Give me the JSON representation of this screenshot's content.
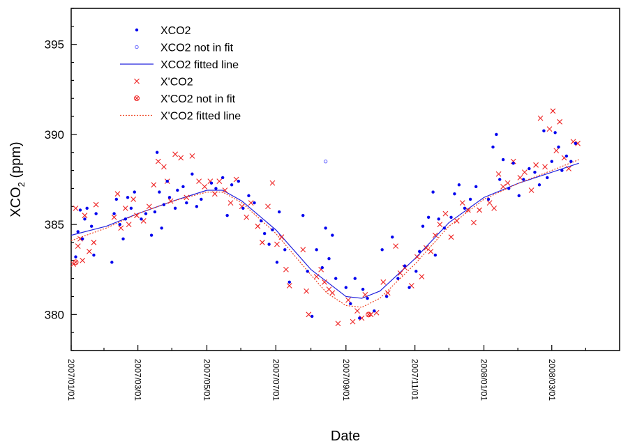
{
  "chart_data": {
    "type": "scatter",
    "title": "",
    "xlabel": "Date",
    "ylabel_main": "XCO",
    "ylabel_sub": "2",
    "ylabel_unit": " (ppm)",
    "xlim": [
      "2007-01-01",
      "2008-04-30"
    ],
    "ylim": [
      378,
      397
    ],
    "x_ticks": [
      "2007/01/01",
      "2007/03/01",
      "2007/05/01",
      "2007/07/01",
      "2007/09/01",
      "2007/11/01",
      "2008/01/01",
      "2008/03/01"
    ],
    "y_ticks": [
      "380",
      "385",
      "390",
      "395"
    ],
    "legend": {
      "position": "top-left",
      "entries": [
        {
          "label": "XCO2",
          "marker": "filled-dot",
          "color": "#0000ee"
        },
        {
          "label": "XCO2 not in fit",
          "marker": "open-circle",
          "color": "#6666ff"
        },
        {
          "label": "XCO2 fitted line",
          "marker": "solid-line",
          "color": "#2222dd"
        },
        {
          "label": "X'CO2",
          "marker": "cross",
          "color": "#ee2222"
        },
        {
          "label": "X'CO2 not in fit",
          "marker": "circled-cross",
          "color": "#ee2222"
        },
        {
          "label": "X'CO2 fitted line",
          "marker": "dotted-line",
          "color": "#ee4422"
        }
      ]
    },
    "series": [
      {
        "name": "XCO2",
        "points": [
          [
            "2007-01-05",
            383.2
          ],
          [
            "2007-01-07",
            384.6
          ],
          [
            "2007-01-09",
            385.8
          ],
          [
            "2007-01-11",
            384.2
          ],
          [
            "2007-01-13",
            385.3
          ],
          [
            "2007-01-15",
            385.9
          ],
          [
            "2007-01-19",
            384.9
          ],
          [
            "2007-01-21",
            383.3
          ],
          [
            "2007-01-23",
            385.6
          ],
          [
            "2007-02-06",
            382.9
          ],
          [
            "2007-02-08",
            385.6
          ],
          [
            "2007-02-10",
            386.4
          ],
          [
            "2007-02-13",
            385.0
          ],
          [
            "2007-02-16",
            384.2
          ],
          [
            "2007-02-18",
            385.3
          ],
          [
            "2007-02-20",
            386.5
          ],
          [
            "2007-02-23",
            385.9
          ],
          [
            "2007-02-26",
            386.8
          ],
          [
            "2007-03-04",
            385.3
          ],
          [
            "2007-03-08",
            385.6
          ],
          [
            "2007-03-13",
            384.4
          ],
          [
            "2007-03-16",
            385.7
          ],
          [
            "2007-03-18",
            389.0
          ],
          [
            "2007-03-20",
            386.8
          ],
          [
            "2007-03-22",
            384.8
          ],
          [
            "2007-03-24",
            386.1
          ],
          [
            "2007-03-27",
            387.4
          ],
          [
            "2007-03-29",
            386.5
          ],
          [
            "2007-04-03",
            385.9
          ],
          [
            "2007-04-05",
            386.9
          ],
          [
            "2007-04-10",
            387.1
          ],
          [
            "2007-04-13",
            386.2
          ],
          [
            "2007-04-18",
            387.8
          ],
          [
            "2007-04-22",
            386.0
          ],
          [
            "2007-04-26",
            386.4
          ],
          [
            "2007-05-05",
            387.3
          ],
          [
            "2007-05-09",
            387.0
          ],
          [
            "2007-05-15",
            387.6
          ],
          [
            "2007-05-19",
            385.5
          ],
          [
            "2007-05-23",
            387.2
          ],
          [
            "2007-05-29",
            387.4
          ],
          [
            "2007-06-02",
            385.9
          ],
          [
            "2007-06-07",
            386.6
          ],
          [
            "2007-06-12",
            386.2
          ],
          [
            "2007-06-18",
            385.2
          ],
          [
            "2007-06-21",
            384.5
          ],
          [
            "2007-06-25",
            383.9
          ],
          [
            "2007-06-28",
            384.7
          ],
          [
            "2007-07-02",
            382.9
          ],
          [
            "2007-07-04",
            385.7
          ],
          [
            "2007-07-09",
            383.6
          ],
          [
            "2007-07-13",
            381.8
          ],
          [
            "2007-07-25",
            385.5
          ],
          [
            "2007-07-29",
            382.4
          ],
          [
            "2007-08-02",
            379.9
          ],
          [
            "2007-08-06",
            383.6
          ],
          [
            "2007-08-11",
            382.6
          ],
          [
            "2007-08-14",
            384.8
          ],
          [
            "2007-08-17",
            383.1
          ],
          [
            "2007-08-20",
            384.4
          ],
          [
            "2007-08-23",
            382.0
          ],
          [
            "2007-09-01",
            381.5
          ],
          [
            "2007-09-05",
            380.6
          ],
          [
            "2007-09-09",
            382.0
          ],
          [
            "2007-09-13",
            379.8
          ],
          [
            "2007-09-16",
            381.4
          ],
          [
            "2007-09-20",
            380.9
          ],
          [
            "2007-09-26",
            380.2
          ],
          [
            "2007-10-03",
            383.6
          ],
          [
            "2007-10-07",
            381.0
          ],
          [
            "2007-10-12",
            384.3
          ],
          [
            "2007-10-17",
            382.0
          ],
          [
            "2007-10-23",
            382.7
          ],
          [
            "2007-10-27",
            381.5
          ],
          [
            "2007-11-02",
            382.4
          ],
          [
            "2007-11-05",
            383.5
          ],
          [
            "2007-11-08",
            384.9
          ],
          [
            "2007-11-13",
            385.4
          ],
          [
            "2007-11-17",
            386.8
          ],
          [
            "2007-11-19",
            383.3
          ],
          [
            "2007-11-22",
            385.3
          ],
          [
            "2007-11-27",
            384.8
          ],
          [
            "2007-12-03",
            385.4
          ],
          [
            "2007-12-06",
            386.7
          ],
          [
            "2007-12-10",
            387.2
          ],
          [
            "2007-12-15",
            385.9
          ],
          [
            "2007-12-20",
            386.4
          ],
          [
            "2007-12-25",
            387.1
          ],
          [
            "2008-01-05",
            386.4
          ],
          [
            "2008-01-09",
            389.3
          ],
          [
            "2008-01-12",
            390.0
          ],
          [
            "2008-01-15",
            387.5
          ],
          [
            "2008-01-18",
            388.6
          ],
          [
            "2008-01-23",
            387.0
          ],
          [
            "2008-01-27",
            388.4
          ],
          [
            "2008-02-01",
            386.6
          ],
          [
            "2008-02-05",
            387.5
          ],
          [
            "2008-02-10",
            388.1
          ],
          [
            "2008-02-15",
            387.9
          ],
          [
            "2008-02-19",
            387.2
          ],
          [
            "2008-02-23",
            390.2
          ],
          [
            "2008-02-26",
            387.6
          ],
          [
            "2008-03-01",
            388.5
          ],
          [
            "2008-03-04",
            390.1
          ],
          [
            "2008-03-07",
            389.3
          ],
          [
            "2008-03-10",
            388.0
          ],
          [
            "2008-03-14",
            388.8
          ],
          [
            "2008-03-18",
            388.5
          ],
          [
            "2008-03-22",
            389.5
          ]
        ]
      },
      {
        "name": "XCO2 not in fit",
        "points": [
          [
            "2007-08-14",
            388.5
          ]
        ]
      },
      {
        "name": "XCO2 fitted line",
        "points": [
          [
            "2007-01-01",
            384.4
          ],
          [
            "2007-02-01",
            384.9
          ],
          [
            "2007-03-01",
            385.6
          ],
          [
            "2007-04-01",
            386.3
          ],
          [
            "2007-05-01",
            386.9
          ],
          [
            "2007-05-15",
            386.9
          ],
          [
            "2007-06-01",
            386.3
          ],
          [
            "2007-07-01",
            384.7
          ],
          [
            "2007-08-01",
            382.5
          ],
          [
            "2007-09-01",
            381.0
          ],
          [
            "2007-09-15",
            380.9
          ],
          [
            "2007-10-01",
            381.3
          ],
          [
            "2007-11-01",
            383.1
          ],
          [
            "2007-12-01",
            385.1
          ],
          [
            "2008-01-01",
            386.5
          ],
          [
            "2008-02-01",
            387.3
          ],
          [
            "2008-03-01",
            387.9
          ],
          [
            "2008-03-25",
            388.4
          ]
        ]
      },
      {
        "name": "X'CO2",
        "points": [
          [
            "2007-01-03",
            382.8
          ],
          [
            "2007-01-05",
            385.9
          ],
          [
            "2007-01-07",
            383.8
          ],
          [
            "2007-01-09",
            384.2
          ],
          [
            "2007-01-11",
            383.0
          ],
          [
            "2007-01-13",
            385.5
          ],
          [
            "2007-01-17",
            383.5
          ],
          [
            "2007-01-21",
            384.0
          ],
          [
            "2007-01-23",
            386.1
          ],
          [
            "2007-02-08",
            385.4
          ],
          [
            "2007-02-11",
            386.7
          ],
          [
            "2007-02-14",
            384.8
          ],
          [
            "2007-02-18",
            385.9
          ],
          [
            "2007-02-21",
            385.0
          ],
          [
            "2007-02-25",
            386.4
          ],
          [
            "2007-02-28",
            385.5
          ],
          [
            "2007-03-06",
            385.2
          ],
          [
            "2007-03-11",
            386.0
          ],
          [
            "2007-03-15",
            387.2
          ],
          [
            "2007-03-19",
            388.5
          ],
          [
            "2007-03-24",
            388.2
          ],
          [
            "2007-03-27",
            387.4
          ],
          [
            "2007-03-30",
            386.3
          ],
          [
            "2007-04-03",
            388.9
          ],
          [
            "2007-04-08",
            388.7
          ],
          [
            "2007-04-13",
            386.5
          ],
          [
            "2007-04-18",
            388.8
          ],
          [
            "2007-04-24",
            387.4
          ],
          [
            "2007-04-29",
            387.1
          ],
          [
            "2007-05-04",
            387.4
          ],
          [
            "2007-05-08",
            386.7
          ],
          [
            "2007-05-12",
            387.4
          ],
          [
            "2007-05-17",
            386.9
          ],
          [
            "2007-05-22",
            386.2
          ],
          [
            "2007-05-27",
            387.5
          ],
          [
            "2007-06-01",
            386.0
          ],
          [
            "2007-06-05",
            385.4
          ],
          [
            "2007-06-09",
            386.2
          ],
          [
            "2007-06-15",
            384.9
          ],
          [
            "2007-06-19",
            384.0
          ],
          [
            "2007-06-24",
            386.0
          ],
          [
            "2007-06-28",
            387.3
          ],
          [
            "2007-07-02",
            383.9
          ],
          [
            "2007-07-06",
            384.3
          ],
          [
            "2007-07-10",
            382.5
          ],
          [
            "2007-07-13",
            381.6
          ],
          [
            "2007-07-25",
            383.6
          ],
          [
            "2007-07-28",
            381.3
          ],
          [
            "2007-07-30",
            380.0
          ],
          [
            "2007-08-06",
            382.1
          ],
          [
            "2007-08-10",
            382.5
          ],
          [
            "2007-08-13",
            381.8
          ],
          [
            "2007-08-17",
            381.4
          ],
          [
            "2007-08-20",
            381.2
          ],
          [
            "2007-08-25",
            379.5
          ],
          [
            "2007-09-03",
            380.8
          ],
          [
            "2007-09-07",
            379.6
          ],
          [
            "2007-09-11",
            380.2
          ],
          [
            "2007-09-15",
            379.8
          ],
          [
            "2007-09-18",
            381.1
          ],
          [
            "2007-09-23",
            380.0
          ],
          [
            "2007-09-28",
            380.1
          ],
          [
            "2007-10-04",
            381.8
          ],
          [
            "2007-10-08",
            381.2
          ],
          [
            "2007-10-15",
            383.8
          ],
          [
            "2007-10-19",
            382.3
          ],
          [
            "2007-10-23",
            382.6
          ],
          [
            "2007-10-29",
            381.6
          ],
          [
            "2007-11-03",
            383.2
          ],
          [
            "2007-11-07",
            382.1
          ],
          [
            "2007-11-11",
            383.7
          ],
          [
            "2007-11-15",
            383.5
          ],
          [
            "2007-11-19",
            384.4
          ],
          [
            "2007-11-23",
            385.0
          ],
          [
            "2007-11-28",
            385.6
          ],
          [
            "2007-12-03",
            384.3
          ],
          [
            "2007-12-08",
            385.2
          ],
          [
            "2007-12-13",
            386.2
          ],
          [
            "2007-12-18",
            385.8
          ],
          [
            "2007-12-23",
            385.1
          ],
          [
            "2007-12-28",
            385.8
          ],
          [
            "2008-01-06",
            386.2
          ],
          [
            "2008-01-10",
            385.9
          ],
          [
            "2008-01-14",
            387.8
          ],
          [
            "2008-01-18",
            387.1
          ],
          [
            "2008-01-22",
            387.3
          ],
          [
            "2008-01-27",
            388.5
          ],
          [
            "2008-02-02",
            387.6
          ],
          [
            "2008-02-06",
            387.9
          ],
          [
            "2008-02-12",
            386.9
          ],
          [
            "2008-02-16",
            388.3
          ],
          [
            "2008-02-20",
            390.9
          ],
          [
            "2008-02-24",
            388.2
          ],
          [
            "2008-02-28",
            390.3
          ],
          [
            "2008-03-02",
            391.3
          ],
          [
            "2008-03-05",
            389.1
          ],
          [
            "2008-03-08",
            390.7
          ],
          [
            "2008-03-12",
            388.7
          ],
          [
            "2008-03-16",
            388.1
          ],
          [
            "2008-03-20",
            389.6
          ],
          [
            "2008-03-24",
            389.5
          ]
        ]
      },
      {
        "name": "X'CO2 not in fit",
        "points": [
          [
            "2007-01-05",
            382.9
          ],
          [
            "2007-09-21",
            380.0
          ]
        ]
      },
      {
        "name": "X'CO2 fitted line",
        "points": [
          [
            "2007-01-01",
            384.1
          ],
          [
            "2007-02-01",
            384.8
          ],
          [
            "2007-03-01",
            385.6
          ],
          [
            "2007-04-01",
            386.3
          ],
          [
            "2007-05-01",
            386.8
          ],
          [
            "2007-05-15",
            386.8
          ],
          [
            "2007-06-01",
            386.2
          ],
          [
            "2007-07-01",
            384.5
          ],
          [
            "2007-08-01",
            382.2
          ],
          [
            "2007-08-15",
            381.2
          ],
          [
            "2007-09-01",
            380.5
          ],
          [
            "2007-09-15",
            380.4
          ],
          [
            "2007-10-01",
            380.9
          ],
          [
            "2007-11-01",
            382.8
          ],
          [
            "2007-12-01",
            384.9
          ],
          [
            "2008-01-01",
            386.4
          ],
          [
            "2008-02-01",
            387.3
          ],
          [
            "2008-03-01",
            388.0
          ],
          [
            "2008-03-25",
            388.6
          ]
        ]
      }
    ]
  }
}
